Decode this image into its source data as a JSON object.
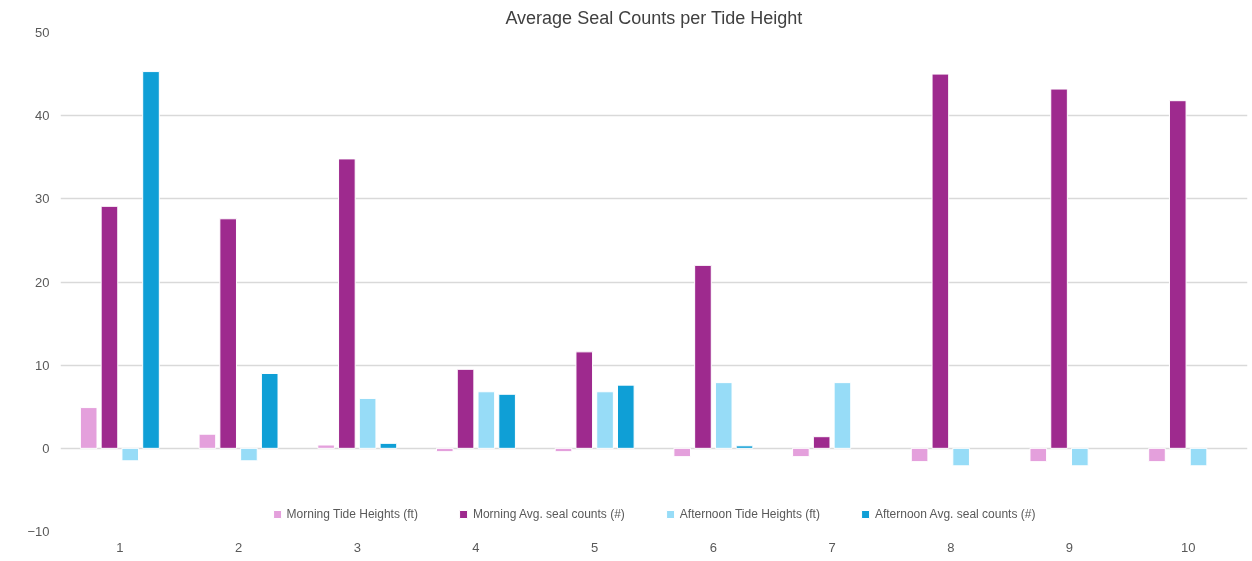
{
  "chart_data": {
    "type": "bar",
    "title": "Average Seal Counts per Tide Height",
    "categories": [
      "1",
      "2",
      "3",
      "4",
      "5",
      "6",
      "7",
      "8",
      "9",
      "10"
    ],
    "series": [
      {
        "name": "Morning Tide Heights (ft)",
        "color": "#e4a0dc",
        "values": [
          4.9,
          1.7,
          0.4,
          -0.4,
          -0.4,
          -1.0,
          -1.0,
          -1.6,
          -1.6,
          -1.6
        ]
      },
      {
        "name": "Morning Avg. seal counts (#)",
        "color": "#9e2a8e",
        "values": [
          29.1,
          27.6,
          34.8,
          9.5,
          11.6,
          22.0,
          1.4,
          45.0,
          43.2,
          41.8
        ]
      },
      {
        "name": "Afternoon Tide Heights (ft)",
        "color": "#97dcf7",
        "values": [
          -1.5,
          -1.5,
          6.0,
          6.8,
          6.8,
          7.9,
          7.9,
          -2.1,
          -2.1,
          -2.1
        ]
      },
      {
        "name": "Afternoon Avg. seal counts (#)",
        "color": "#0f9fd6",
        "values": [
          45.3,
          9.0,
          0.6,
          6.5,
          7.6,
          0.3,
          null,
          null,
          null,
          null
        ]
      }
    ],
    "ylim": [
      -10,
      50
    ],
    "yticks": [
      -10,
      0,
      10,
      20,
      30,
      40,
      50
    ],
    "grid": "y",
    "legend": "bottom"
  }
}
